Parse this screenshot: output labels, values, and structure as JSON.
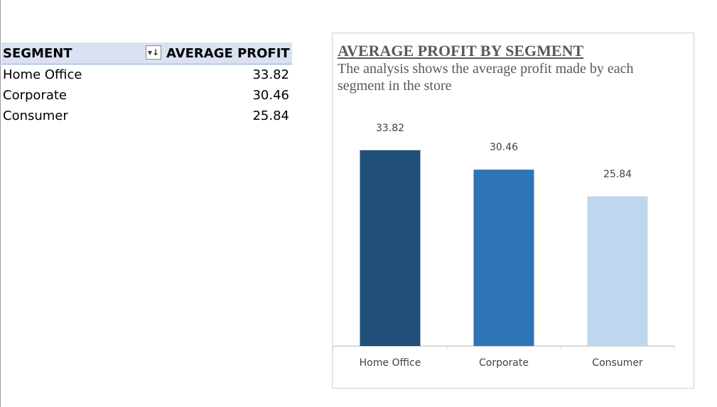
{
  "pivot": {
    "header": {
      "segment": "SEGMENT",
      "average_profit": "AVERAGE PROFIT",
      "sort_icon": "sort-descending-icon"
    },
    "rows": [
      {
        "segment": "Home Office",
        "value": "33.82"
      },
      {
        "segment": "Corporate",
        "value": "30.46"
      },
      {
        "segment": "Consumer",
        "value": "25.84"
      }
    ]
  },
  "chart_data": {
    "type": "bar",
    "title": "AVERAGE PROFIT BY SEGMENT",
    "subtitle": "The analysis shows the average profit made by each segment in the store",
    "categories": [
      "Home Office",
      "Corporate",
      "Consumer"
    ],
    "values": [
      33.82,
      30.46,
      25.84
    ],
    "data_labels": [
      "33.82",
      "30.46",
      "25.84"
    ],
    "colors": [
      "#1f4e79",
      "#2e75b6",
      "#bdd7ee"
    ],
    "ylim": [
      0,
      36
    ],
    "grid": false,
    "legend": "none"
  }
}
